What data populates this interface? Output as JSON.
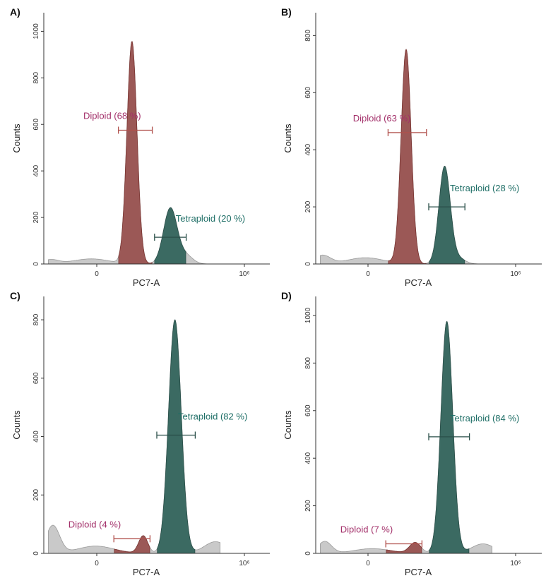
{
  "colors": {
    "diploid": "#9b5856",
    "diploid_dark": "#7a3431",
    "diploid_label": "#a3306a",
    "tetraploid": "#3b6a62",
    "tetraploid_dark": "#2a4f49",
    "tetraploid_label": "#1e6e66",
    "other": "#c9c9c9",
    "other_dark": "#9a9a9a",
    "axis": "#333333"
  },
  "chart_data": [
    {
      "type": "area",
      "panel_label": "A)",
      "xlabel": "PC7-A",
      "ylabel": "Counts",
      "x_ticks": [
        {
          "label": "0"
        },
        {
          "label": "10⁶"
        }
      ],
      "ylim": [
        0,
        1080
      ],
      "y_ticks": [
        0,
        200,
        400,
        600,
        800,
        1000
      ],
      "peaks": [
        {
          "center": 0.03,
          "height": 18,
          "width": 0.035,
          "kind": "other"
        },
        {
          "center": 0.21,
          "height": 22,
          "width": 0.08,
          "kind": "other"
        },
        {
          "center": 0.39,
          "height": 955,
          "width": 0.022,
          "kind": "diploid"
        },
        {
          "center": 0.56,
          "height": 240,
          "width": 0.03,
          "kind": "tetraploid"
        },
        {
          "center": 0.63,
          "height": 35,
          "width": 0.03,
          "kind": "other"
        }
      ],
      "gates": [
        {
          "name": "Diploid",
          "label": "Diploid (68 %)",
          "from": 0.33,
          "to": 0.48,
          "y": 575,
          "kind": "diploid"
        },
        {
          "name": "Tetraploid",
          "label": "Tetraploid (20 %)",
          "from": 0.49,
          "to": 0.63,
          "y": 115,
          "kind": "tetraploid"
        }
      ]
    },
    {
      "type": "area",
      "panel_label": "B)",
      "xlabel": "PC7-A",
      "ylabel": "Counts",
      "x_ticks": [
        {
          "label": "0"
        },
        {
          "label": "10⁶"
        }
      ],
      "ylim": [
        0,
        880
      ],
      "y_ticks": [
        0,
        200,
        400,
        600,
        800
      ],
      "peaks": [
        {
          "center": 0.03,
          "height": 30,
          "width": 0.035,
          "kind": "other"
        },
        {
          "center": 0.22,
          "height": 22,
          "width": 0.08,
          "kind": "other"
        },
        {
          "center": 0.4,
          "height": 750,
          "width": 0.022,
          "kind": "diploid"
        },
        {
          "center": 0.57,
          "height": 340,
          "width": 0.025,
          "kind": "tetraploid"
        },
        {
          "center": 0.63,
          "height": 20,
          "width": 0.03,
          "kind": "other"
        }
      ],
      "gates": [
        {
          "name": "Diploid",
          "label": "Diploid (63 %)",
          "from": 0.32,
          "to": 0.49,
          "y": 460,
          "kind": "diploid"
        },
        {
          "name": "Tetraploid",
          "label": "Tetraploid (28 %)",
          "from": 0.5,
          "to": 0.66,
          "y": 200,
          "kind": "tetraploid"
        }
      ]
    },
    {
      "type": "area",
      "panel_label": "C)",
      "xlabel": "PC7-A",
      "ylabel": "Counts",
      "x_ticks": [
        {
          "label": "0"
        },
        {
          "label": "10⁶"
        }
      ],
      "ylim": [
        0,
        880
      ],
      "y_ticks": [
        0,
        200,
        400,
        600,
        800
      ],
      "peaks": [
        {
          "center": 0.04,
          "height": 95,
          "width": 0.03,
          "kind": "other"
        },
        {
          "center": 0.23,
          "height": 25,
          "width": 0.08,
          "kind": "other"
        },
        {
          "center": 0.44,
          "height": 60,
          "width": 0.02,
          "kind": "other"
        },
        {
          "center": 0.58,
          "height": 800,
          "width": 0.028,
          "kind": "tetraploid"
        },
        {
          "center": 0.76,
          "height": 40,
          "width": 0.05,
          "kind": "other"
        }
      ],
      "gates": [
        {
          "name": "Diploid",
          "label": "Diploid (4 %)",
          "from": 0.31,
          "to": 0.47,
          "y": 50,
          "kind": "diploid"
        },
        {
          "name": "Tetraploid",
          "label": "Tetraploid (82 %)",
          "from": 0.5,
          "to": 0.67,
          "y": 405,
          "kind": "tetraploid"
        }
      ]
    },
    {
      "type": "area",
      "panel_label": "D)",
      "xlabel": "PC7-A",
      "ylabel": "Counts",
      "x_ticks": [
        {
          "label": "0"
        },
        {
          "label": "10⁶"
        }
      ],
      "ylim": [
        0,
        1080
      ],
      "y_ticks": [
        0,
        200,
        400,
        600,
        800,
        1000
      ],
      "peaks": [
        {
          "center": 0.04,
          "height": 50,
          "width": 0.03,
          "kind": "other"
        },
        {
          "center": 0.25,
          "height": 20,
          "width": 0.08,
          "kind": "other"
        },
        {
          "center": 0.44,
          "height": 45,
          "width": 0.025,
          "kind": "other"
        },
        {
          "center": 0.58,
          "height": 975,
          "width": 0.026,
          "kind": "tetraploid"
        },
        {
          "center": 0.74,
          "height": 40,
          "width": 0.05,
          "kind": "other"
        }
      ],
      "gates": [
        {
          "name": "Diploid",
          "label": "Diploid (7 %)",
          "from": 0.31,
          "to": 0.47,
          "y": 40,
          "kind": "diploid"
        },
        {
          "name": "Tetraploid",
          "label": "Tetraploid (84 %)",
          "from": 0.5,
          "to": 0.68,
          "y": 490,
          "kind": "tetraploid"
        }
      ]
    }
  ]
}
